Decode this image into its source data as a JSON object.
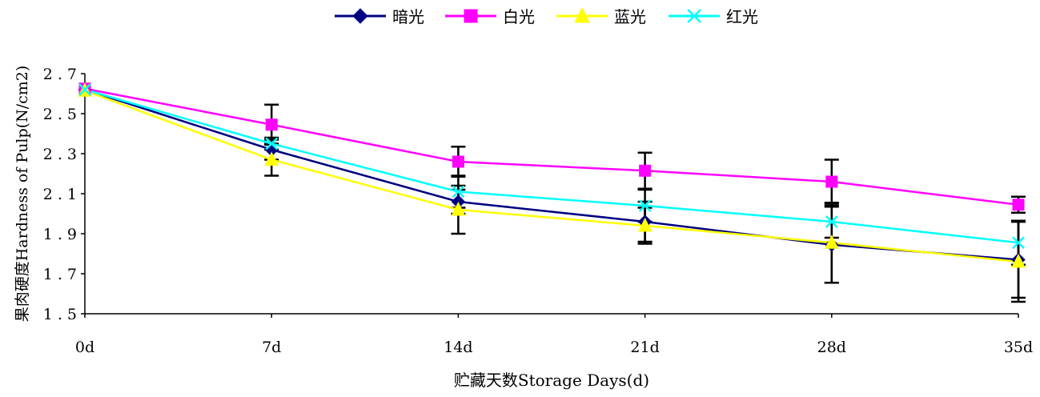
{
  "chart_data": {
    "type": "line",
    "title": "",
    "xlabel": "贮藏天数Storage Days(d)",
    "ylabel": "果肉硬度Hardness of Pulp(N/cm2)",
    "categories": [
      "0d",
      "7d",
      "14d",
      "21d",
      "28d",
      "35d"
    ],
    "yticks": [
      "1.5",
      "1.7",
      "1.9",
      "2.1",
      "2.3",
      "2.5",
      "2.7"
    ],
    "ylim": [
      1.5,
      2.7
    ],
    "grid": false,
    "legend_position": "top",
    "series": [
      {
        "name": "暗光",
        "color": "#000080",
        "marker": "diamond",
        "values": [
          2.62,
          2.32,
          2.06,
          1.96,
          1.845,
          1.77
        ],
        "error": [
          0,
          0.05,
          0.06,
          0.1,
          0.19,
          0.19
        ]
      },
      {
        "name": "白光",
        "color": "#ff00ff",
        "marker": "square",
        "values": [
          2.625,
          2.445,
          2.26,
          2.215,
          2.16,
          2.045
        ],
        "error": [
          0,
          0.1,
          0.075,
          0.09,
          0.11,
          0.04
        ]
      },
      {
        "name": "蓝光",
        "color": "#ffff00",
        "marker": "triangle",
        "values": [
          2.615,
          2.27,
          2.02,
          1.94,
          1.855,
          1.76
        ],
        "error": [
          0,
          0.08,
          0.12,
          0.09,
          0.2,
          0.2
        ]
      },
      {
        "name": "红光",
        "color": "#00ffff",
        "marker": "x",
        "values": [
          2.62,
          2.35,
          2.11,
          2.04,
          1.96,
          1.855
        ],
        "error": [
          0,
          0.03,
          0.08,
          0.08,
          0.08,
          0.11
        ]
      }
    ]
  }
}
